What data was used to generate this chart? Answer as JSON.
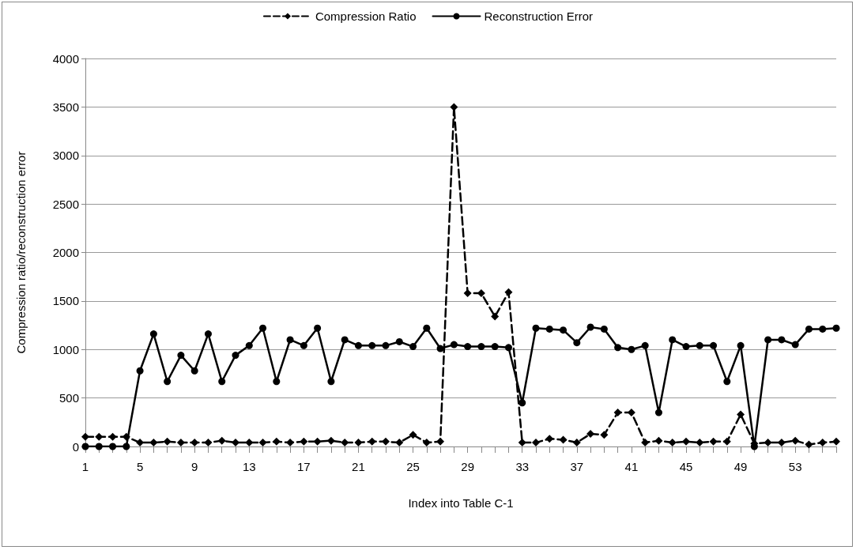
{
  "chart_data": {
    "type": "line",
    "xlabel": "Index into Table C-1",
    "ylabel": "Compression ratio/reconstruction error",
    "categories": [
      "1",
      null,
      null,
      null,
      "5",
      null,
      null,
      null,
      "9",
      null,
      null,
      null,
      "13",
      null,
      null,
      null,
      "17",
      null,
      null,
      null,
      "21",
      null,
      null,
      null,
      "25",
      null,
      null,
      null,
      "29",
      null,
      null,
      null,
      "33",
      null,
      null,
      null,
      "37",
      null,
      null,
      null,
      "41",
      null,
      null,
      null,
      "45",
      null,
      null,
      null,
      "49",
      null,
      null,
      null,
      "53",
      null,
      null,
      null
    ],
    "series": [
      {
        "name": "Compression Ratio",
        "color": "#000000",
        "marker": "diamond",
        "line_style": "dashed",
        "values": [
          100,
          100,
          100,
          100,
          40,
          40,
          50,
          40,
          40,
          40,
          60,
          40,
          40,
          40,
          50,
          40,
          50,
          50,
          60,
          40,
          40,
          50,
          50,
          40,
          120,
          40,
          50,
          3500,
          1580,
          1580,
          1340,
          1590,
          40,
          40,
          80,
          70,
          40,
          130,
          120,
          350,
          350,
          40,
          60,
          40,
          50,
          40,
          50,
          50,
          330,
          30,
          40,
          40,
          60,
          20,
          40,
          50
        ]
      },
      {
        "name": "Reconstruction Error",
        "color": "#000000",
        "marker": "circle",
        "line_style": "solid",
        "values": [
          0,
          0,
          0,
          0,
          780,
          1160,
          670,
          940,
          780,
          1160,
          670,
          940,
          1040,
          1220,
          670,
          1100,
          1040,
          1220,
          670,
          1100,
          1040,
          1040,
          1040,
          1080,
          1030,
          1220,
          1010,
          1050,
          1030,
          1030,
          1030,
          1020,
          450,
          1220,
          1210,
          1200,
          1070,
          1230,
          1210,
          1020,
          1000,
          1040,
          350,
          1100,
          1030,
          1040,
          1040,
          670,
          1040,
          0,
          1100,
          1100,
          1050,
          1210,
          1210,
          1220
        ]
      }
    ],
    "ylim": [
      0,
      4000
    ],
    "yticks": [
      0,
      500,
      1000,
      1500,
      2000,
      2500,
      3000,
      3500,
      4000
    ],
    "grid": "y",
    "legend": "top"
  }
}
